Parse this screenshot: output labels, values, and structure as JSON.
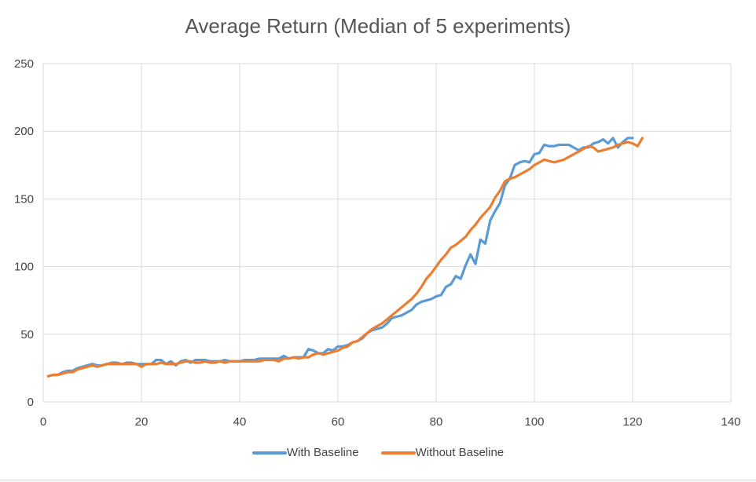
{
  "chart_data": {
    "type": "line",
    "title": "Average Return (Median of 5 experiments)",
    "xlabel": "",
    "ylabel": "",
    "xlim": [
      0,
      140
    ],
    "ylim": [
      0,
      250
    ],
    "x_ticks": [
      0,
      20,
      40,
      60,
      80,
      100,
      120,
      140
    ],
    "y_ticks": [
      0,
      50,
      100,
      150,
      200,
      250
    ],
    "x_tick_labels": [
      "0",
      "20",
      "40",
      "60",
      "80",
      "100",
      "120",
      "140"
    ],
    "y_tick_labels": [
      "0",
      "50",
      "100",
      "150",
      "200",
      "250"
    ],
    "grid": true,
    "legend_position": "bottom",
    "series": [
      {
        "name": "With Baseline",
        "color": "#5b9bd5",
        "x": [
          1,
          2,
          3,
          4,
          5,
          6,
          7,
          8,
          9,
          10,
          11,
          12,
          13,
          14,
          15,
          16,
          17,
          18,
          19,
          20,
          21,
          22,
          23,
          24,
          25,
          26,
          27,
          28,
          29,
          30,
          31,
          32,
          33,
          34,
          35,
          36,
          37,
          38,
          39,
          40,
          41,
          42,
          43,
          44,
          45,
          46,
          47,
          48,
          49,
          50,
          51,
          52,
          53,
          54,
          55,
          56,
          57,
          58,
          59,
          60,
          61,
          62,
          63,
          64,
          65,
          66,
          67,
          68,
          69,
          70,
          71,
          72,
          73,
          74,
          75,
          76,
          77,
          78,
          79,
          80,
          81,
          82,
          83,
          84,
          85,
          86,
          87,
          88,
          89,
          90,
          91,
          92,
          93,
          94,
          95,
          96,
          97,
          98,
          99,
          100,
          101,
          102,
          103,
          104,
          105,
          106,
          107,
          108,
          109,
          110,
          111,
          112,
          113,
          114,
          115,
          116,
          117,
          118,
          119,
          120
        ],
        "values": [
          19,
          20,
          20,
          22,
          23,
          23,
          25,
          26,
          27,
          28,
          27,
          27,
          28,
          29,
          29,
          28,
          29,
          29,
          28,
          28,
          28,
          28,
          31,
          31,
          28,
          30,
          27,
          30,
          31,
          29,
          31,
          31,
          31,
          30,
          30,
          30,
          31,
          30,
          30,
          30,
          31,
          31,
          31,
          32,
          32,
          32,
          32,
          32,
          34,
          32,
          33,
          33,
          33,
          39,
          38,
          36,
          36,
          39,
          38,
          41,
          41,
          42,
          44,
          45,
          47,
          51,
          53,
          54,
          55,
          58,
          62,
          63,
          64,
          66,
          68,
          72,
          74,
          75,
          76,
          78,
          79,
          85,
          87,
          93,
          91,
          101,
          109,
          102,
          120,
          117,
          134,
          141,
          147,
          160,
          165,
          175,
          177,
          178,
          177,
          183,
          184,
          190,
          189,
          189,
          190,
          190,
          190,
          188,
          186,
          188,
          188,
          191,
          192,
          194,
          191,
          195,
          188,
          192,
          195,
          195
        ]
      },
      {
        "name": "Without Baseline",
        "color": "#ed7d31",
        "x": [
          1,
          2,
          3,
          4,
          5,
          6,
          7,
          8,
          9,
          10,
          11,
          12,
          13,
          14,
          15,
          16,
          17,
          18,
          19,
          20,
          21,
          22,
          23,
          24,
          25,
          26,
          27,
          28,
          29,
          30,
          31,
          32,
          33,
          34,
          35,
          36,
          37,
          38,
          39,
          40,
          41,
          42,
          43,
          44,
          45,
          46,
          47,
          48,
          49,
          50,
          51,
          52,
          53,
          54,
          55,
          56,
          57,
          58,
          59,
          60,
          61,
          62,
          63,
          64,
          65,
          66,
          67,
          68,
          69,
          70,
          71,
          72,
          73,
          74,
          75,
          76,
          77,
          78,
          79,
          80,
          81,
          82,
          83,
          84,
          85,
          86,
          87,
          88,
          89,
          90,
          91,
          92,
          93,
          94,
          95,
          96,
          97,
          98,
          99,
          100,
          101,
          102,
          103,
          104,
          105,
          106,
          107,
          108,
          109,
          110,
          111,
          112,
          113,
          114,
          115,
          116,
          117,
          118,
          119,
          120,
          121,
          122
        ],
        "values": [
          19,
          20,
          20,
          21,
          22,
          22,
          24,
          25,
          26,
          27,
          26,
          27,
          28,
          28,
          28,
          28,
          28,
          28,
          28,
          26,
          28,
          28,
          28,
          29,
          28,
          28,
          28,
          29,
          30,
          30,
          29,
          29,
          30,
          29,
          29,
          30,
          29,
          30,
          30,
          30,
          30,
          30,
          30,
          30,
          31,
          31,
          31,
          30,
          32,
          32,
          33,
          32,
          33,
          33,
          35,
          36,
          35,
          36,
          37,
          38,
          40,
          41,
          44,
          45,
          48,
          51,
          54,
          56,
          58,
          61,
          64,
          67,
          70,
          73,
          76,
          80,
          85,
          91,
          95,
          100,
          105,
          109,
          114,
          116,
          119,
          122,
          127,
          131,
          136,
          140,
          144,
          151,
          156,
          163,
          165,
          166,
          168,
          170,
          172,
          175,
          177,
          179,
          178,
          177,
          178,
          179,
          181,
          183,
          185,
          187,
          189,
          188,
          185,
          186,
          187,
          188,
          190,
          191,
          192,
          191,
          189,
          195
        ]
      }
    ]
  }
}
